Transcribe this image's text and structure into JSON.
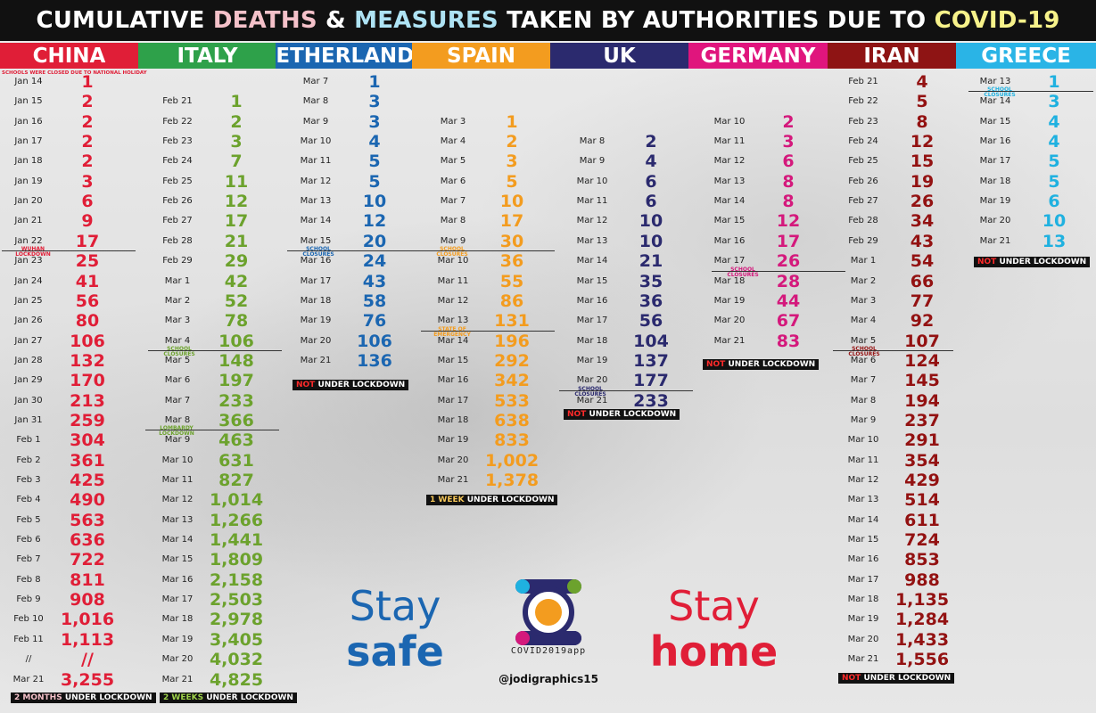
{
  "title": {
    "part1": "CUMULATIVE ",
    "part2": "DEATHS",
    "part3": " & ",
    "part4": "MEASURES",
    "part5": " TAKEN BY AUTHORITIES DUE TO ",
    "part6": "COVID-19",
    "colors": {
      "base": "#ffffff",
      "deaths": "#f4c1c9",
      "measures": "#aee3f4",
      "covid": "#f7f28a"
    }
  },
  "countries": [
    {
      "name": "CHINA",
      "color": "#e01e37",
      "header_bg": "#e01e37",
      "note": "SCHOOLS WERE CLOSED DUE TO NATIONAL HOLIDAY",
      "rows": [
        [
          "Jan 14",
          "1"
        ],
        [
          "Jan 15",
          "2"
        ],
        [
          "Jan 16",
          "2"
        ],
        [
          "Jan 17",
          "2"
        ],
        [
          "Jan 18",
          "2"
        ],
        [
          "Jan 19",
          "3"
        ],
        [
          "Jan 20",
          "6"
        ],
        [
          "Jan 21",
          "9"
        ],
        [
          "Jan 22",
          "17"
        ],
        [
          "Jan 23",
          "25"
        ],
        [
          "Jan 24",
          "41"
        ],
        [
          "Jan 25",
          "56"
        ],
        [
          "Jan 26",
          "80"
        ],
        [
          "Jan 27",
          "106"
        ],
        [
          "Jan 28",
          "132"
        ],
        [
          "Jan 29",
          "170"
        ],
        [
          "Jan 30",
          "213"
        ],
        [
          "Jan 31",
          "259"
        ],
        [
          "Feb 1",
          "304"
        ],
        [
          "Feb 2",
          "361"
        ],
        [
          "Feb 3",
          "425"
        ],
        [
          "Feb 4",
          "490"
        ],
        [
          "Feb 5",
          "563"
        ],
        [
          "Feb 6",
          "636"
        ],
        [
          "Feb 7",
          "722"
        ],
        [
          "Feb 8",
          "811"
        ],
        [
          "Feb 9",
          "908"
        ],
        [
          "Feb 10",
          "1,016"
        ],
        [
          "Feb 11",
          "1,113"
        ],
        [
          "//",
          "//"
        ],
        [
          "Mar 21",
          "3,255"
        ]
      ],
      "measure": {
        "label": "WUHAN LOCKDOWN"
      },
      "lockdown": {
        "highlight": "2 MONTHS",
        "text": " UNDER LOCKDOWN"
      }
    },
    {
      "name": "ITALY",
      "color": "#6ca22d",
      "header_bg": "#2ea14a",
      "rows": [
        [
          "Feb 21",
          "1"
        ],
        [
          "Feb 22",
          "2"
        ],
        [
          "Feb 23",
          "3"
        ],
        [
          "Feb 24",
          "7"
        ],
        [
          "Feb 25",
          "11"
        ],
        [
          "Feb 26",
          "12"
        ],
        [
          "Feb 27",
          "17"
        ],
        [
          "Feb 28",
          "21"
        ],
        [
          "Feb 29",
          "29"
        ],
        [
          "Mar 1",
          "42"
        ],
        [
          "Mar 2",
          "52"
        ],
        [
          "Mar 3",
          "78"
        ],
        [
          "Mar 4",
          "106"
        ],
        [
          "Mar 5",
          "148"
        ],
        [
          "Mar 6",
          "197"
        ],
        [
          "Mar 7",
          "233"
        ],
        [
          "Mar 8",
          "366"
        ],
        [
          "Mar 9",
          "463"
        ],
        [
          "Mar 10",
          "631"
        ],
        [
          "Mar 11",
          "827"
        ],
        [
          "Mar 12",
          "1,014"
        ],
        [
          "Mar 13",
          "1,266"
        ],
        [
          "Mar 14",
          "1,441"
        ],
        [
          "Mar 15",
          "1,809"
        ],
        [
          "Mar 16",
          "2,158"
        ],
        [
          "Mar 17",
          "2,503"
        ],
        [
          "Mar 18",
          "2,978"
        ],
        [
          "Mar 19",
          "3,405"
        ],
        [
          "Mar 20",
          "4,032"
        ],
        [
          "Mar 21",
          "4,825"
        ]
      ],
      "measures": [
        {
          "label": "SCHOOL CLOSURES"
        },
        {
          "label": "LOMBARDY LOCKDOWN"
        }
      ],
      "lockdown": {
        "highlight": "2 WEEKS",
        "text": " UNDER LOCKDOWN"
      }
    },
    {
      "name": "NETHERLANDS",
      "color": "#1b66b1",
      "header_bg": "#1b66b1",
      "rows": [
        [
          "Mar 7",
          "1"
        ],
        [
          "Mar 8",
          "3"
        ],
        [
          "Mar 9",
          "3"
        ],
        [
          "Mar 10",
          "4"
        ],
        [
          "Mar 11",
          "5"
        ],
        [
          "Mar 12",
          "5"
        ],
        [
          "Mar 13",
          "10"
        ],
        [
          "Mar 14",
          "12"
        ],
        [
          "Mar 15",
          "20"
        ],
        [
          "Mar 16",
          "24"
        ],
        [
          "Mar 17",
          "43"
        ],
        [
          "Mar 18",
          "58"
        ],
        [
          "Mar 19",
          "76"
        ],
        [
          "Mar 20",
          "106"
        ],
        [
          "Mar 21",
          "136"
        ]
      ],
      "measure": {
        "label": "SCHOOL CLOSURES"
      },
      "lockdown": {
        "highlight": "NOT",
        "text": " UNDER LOCKDOWN"
      }
    },
    {
      "name": "SPAIN",
      "color": "#f39c1f",
      "header_bg": "#f39c1f",
      "rows": [
        [
          "Mar 3",
          "1"
        ],
        [
          "Mar 4",
          "2"
        ],
        [
          "Mar 5",
          "3"
        ],
        [
          "Mar 6",
          "5"
        ],
        [
          "Mar 7",
          "10"
        ],
        [
          "Mar 8",
          "17"
        ],
        [
          "Mar 9",
          "30"
        ],
        [
          "Mar 10",
          "36"
        ],
        [
          "Mar 11",
          "55"
        ],
        [
          "Mar 12",
          "86"
        ],
        [
          "Mar 13",
          "131"
        ],
        [
          "Mar 14",
          "196"
        ],
        [
          "Mar 15",
          "292"
        ],
        [
          "Mar 16",
          "342"
        ],
        [
          "Mar 17",
          "533"
        ],
        [
          "Mar 18",
          "638"
        ],
        [
          "Mar 19",
          "833"
        ],
        [
          "Mar 20",
          "1,002"
        ],
        [
          "Mar 21",
          "1,378"
        ]
      ],
      "measures": [
        {
          "label": "SCHOOL CLOSURES"
        },
        {
          "label": "STATE OF EMERGENCY"
        }
      ],
      "lockdown": {
        "highlight": "1 WEEK",
        "text": " UNDER LOCKDOWN"
      }
    },
    {
      "name": "UK",
      "color": "#2b2a6e",
      "header_bg": "#2b2a6e",
      "rows": [
        [
          "Mar 8",
          "2"
        ],
        [
          "Mar 9",
          "4"
        ],
        [
          "Mar 10",
          "6"
        ],
        [
          "Mar 11",
          "6"
        ],
        [
          "Mar 12",
          "10"
        ],
        [
          "Mar 13",
          "10"
        ],
        [
          "Mar 14",
          "21"
        ],
        [
          "Mar 15",
          "35"
        ],
        [
          "Mar 16",
          "36"
        ],
        [
          "Mar 17",
          "56"
        ],
        [
          "Mar 18",
          "104"
        ],
        [
          "Mar 19",
          "137"
        ],
        [
          "Mar 20",
          "177"
        ],
        [
          "Mar 21",
          "233"
        ]
      ],
      "measure": {
        "label": "SCHOOL CLOSURES"
      },
      "lockdown": {
        "highlight": "NOT",
        "text": " UNDER LOCKDOWN"
      }
    },
    {
      "name": "GERMANY",
      "color": "#d4197c",
      "header_bg": "#e0157d",
      "rows": [
        [
          "Mar 10",
          "2"
        ],
        [
          "Mar 11",
          "3"
        ],
        [
          "Mar 12",
          "6"
        ],
        [
          "Mar 13",
          "8"
        ],
        [
          "Mar 14",
          "8"
        ],
        [
          "Mar 15",
          "12"
        ],
        [
          "Mar 16",
          "17"
        ],
        [
          "Mar 17",
          "26"
        ],
        [
          "Mar 18",
          "28"
        ],
        [
          "Mar 19",
          "44"
        ],
        [
          "Mar 20",
          "67"
        ],
        [
          "Mar 21",
          "83"
        ]
      ],
      "measure": {
        "label": "SCHOOL CLOSURES"
      },
      "lockdown": {
        "highlight": "NOT",
        "text": " UNDER LOCKDOWN"
      }
    },
    {
      "name": "IRAN",
      "color": "#931212",
      "header_bg": "#8e1414",
      "rows": [
        [
          "Feb 21",
          "4"
        ],
        [
          "Feb 22",
          "5"
        ],
        [
          "Feb 23",
          "8"
        ],
        [
          "Feb 24",
          "12"
        ],
        [
          "Feb 25",
          "15"
        ],
        [
          "Feb 26",
          "19"
        ],
        [
          "Feb 27",
          "26"
        ],
        [
          "Feb 28",
          "34"
        ],
        [
          "Feb 29",
          "43"
        ],
        [
          "Mar 1",
          "54"
        ],
        [
          "Mar 2",
          "66"
        ],
        [
          "Mar 3",
          "77"
        ],
        [
          "Mar 4",
          "92"
        ],
        [
          "Mar 5",
          "107"
        ],
        [
          "Mar 6",
          "124"
        ],
        [
          "Mar 7",
          "145"
        ],
        [
          "Mar 8",
          "194"
        ],
        [
          "Mar 9",
          "237"
        ],
        [
          "Mar 10",
          "291"
        ],
        [
          "Mar 11",
          "354"
        ],
        [
          "Mar 12",
          "429"
        ],
        [
          "Mar 13",
          "514"
        ],
        [
          "Mar 14",
          "611"
        ],
        [
          "Mar 15",
          "724"
        ],
        [
          "Mar 16",
          "853"
        ],
        [
          "Mar 17",
          "988"
        ],
        [
          "Mar 18",
          "1,135"
        ],
        [
          "Mar 19",
          "1,284"
        ],
        [
          "Mar 20",
          "1,433"
        ],
        [
          "Mar 21",
          "1,556"
        ]
      ],
      "measure": {
        "label": "SCHOOL CLOSURES"
      },
      "lockdown": {
        "highlight": "NOT",
        "text": " UNDER LOCKDOWN"
      }
    },
    {
      "name": "GREECE",
      "color": "#1fb1e0",
      "header_bg": "#2ab4e6",
      "rows": [
        [
          "Mar 13",
          "1"
        ],
        [
          "Mar 14",
          "3"
        ],
        [
          "Mar 15",
          "4"
        ],
        [
          "Mar 16",
          "4"
        ],
        [
          "Mar 17",
          "5"
        ],
        [
          "Mar 18",
          "5"
        ],
        [
          "Mar 19",
          "6"
        ],
        [
          "Mar 20",
          "10"
        ],
        [
          "Mar 21",
          "13"
        ]
      ],
      "measure": {
        "label": "SCHOOL CLOSURES"
      },
      "lockdown": {
        "highlight": "NOT",
        "text": " UNDER LOCKDOWN"
      }
    }
  ],
  "footer": {
    "left": {
      "top": "Stay",
      "bottom": "safe",
      "color": "#1b66b1"
    },
    "right": {
      "top": "Stay",
      "bottom": "home",
      "color": "#e01e37"
    },
    "logo_caption": "COVID2019app",
    "handle": "@jodigraphics15",
    "lockdown_highlight_colors": {
      "CHINA": "#f4c1c9",
      "ITALY": "#9ed24a",
      "NETHERLANDS": "#ff2a2a",
      "SPAIN": "#f7c85a",
      "UK": "#ff2a2a",
      "GERMANY": "#ff2a2a",
      "IRAN": "#ff2a2a",
      "GREECE": "#ff2a2a"
    }
  }
}
